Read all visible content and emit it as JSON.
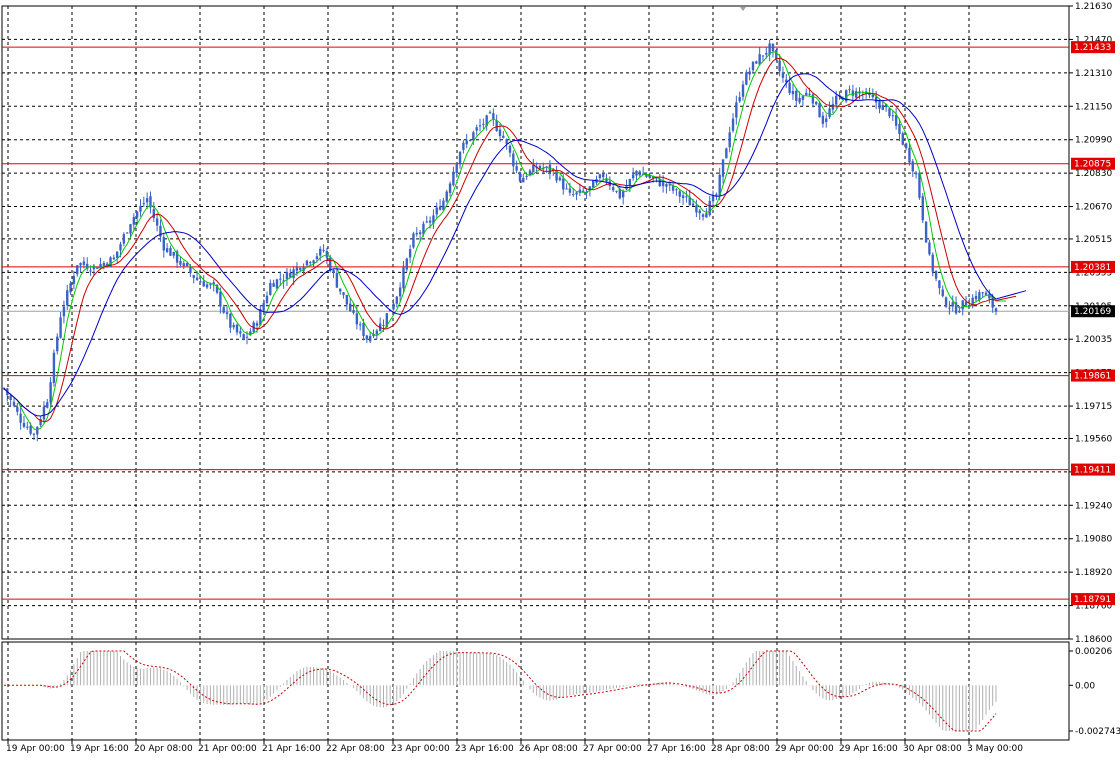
{
  "chart_data": [
    {
      "type": "candlestick",
      "panel": "price",
      "ylim": [
        1.186,
        1.2163
      ],
      "y_ticks": [
        "1.21630",
        "1.21470",
        "1.21310",
        "1.21150",
        "1.20990",
        "1.20830",
        "1.20670",
        "1.20515",
        "1.20355",
        "1.20195",
        "1.20035",
        "1.19875",
        "1.19715",
        "1.19560",
        "1.19400",
        "1.19240",
        "1.19080",
        "1.18920",
        "1.18760",
        "1.18600"
      ],
      "x_ticks": [
        "19 Apr 00:00",
        "19 Apr 16:00",
        "20 Apr 08:00",
        "21 Apr 00:00",
        "21 Apr 16:00",
        "22 Apr 08:00",
        "23 Apr 00:00",
        "23 Apr 16:00",
        "26 Apr 08:00",
        "27 Apr 00:00",
        "27 Apr 16:00",
        "28 Apr 08:00",
        "29 Apr 00:00",
        "29 Apr 16:00",
        "30 Apr 08:00",
        "3 May 00:00"
      ],
      "grid": true,
      "horizontal_levels": [
        "1.21433",
        "1.20875",
        "1.20381",
        "1.19861",
        "1.19411",
        "1.18791"
      ],
      "current_price": "1.20169",
      "close_anchors": [
        [
          0,
          1.198
        ],
        [
          5,
          1.1965
        ],
        [
          9,
          1.1958
        ],
        [
          13,
          1.1975
        ],
        [
          17,
          1.2015
        ],
        [
          22,
          1.204
        ],
        [
          27,
          1.2038
        ],
        [
          33,
          1.2042
        ],
        [
          38,
          1.206
        ],
        [
          43,
          1.2071
        ],
        [
          48,
          1.2048
        ],
        [
          53,
          1.204
        ],
        [
          58,
          1.2032
        ],
        [
          63,
          1.2028
        ],
        [
          68,
          1.201
        ],
        [
          72,
          1.2003
        ],
        [
          76,
          1.2012
        ],
        [
          80,
          1.203
        ],
        [
          85,
          1.2034
        ],
        [
          90,
          1.204
        ],
        [
          96,
          1.2046
        ],
        [
          100,
          1.203
        ],
        [
          105,
          1.2014
        ],
        [
          109,
          1.2004
        ],
        [
          114,
          1.2012
        ],
        [
          118,
          1.2025
        ],
        [
          123,
          1.2052
        ],
        [
          128,
          1.206
        ],
        [
          132,
          1.207
        ],
        [
          137,
          1.2094
        ],
        [
          142,
          1.2104
        ],
        [
          146,
          1.211
        ],
        [
          150,
          1.21
        ],
        [
          155,
          1.208
        ],
        [
          160,
          1.2086
        ],
        [
          165,
          1.2084
        ],
        [
          170,
          1.2072
        ],
        [
          175,
          1.2074
        ],
        [
          180,
          1.2082
        ],
        [
          185,
          1.2072
        ],
        [
          190,
          1.2084
        ],
        [
          195,
          1.208
        ],
        [
          200,
          1.2076
        ],
        [
          205,
          1.207
        ],
        [
          210,
          1.2064
        ],
        [
          214,
          1.2072
        ],
        [
          218,
          1.2104
        ],
        [
          222,
          1.2127
        ],
        [
          226,
          1.2137
        ],
        [
          230,
          1.2143
        ],
        [
          234,
          1.2128
        ],
        [
          238,
          1.2118
        ],
        [
          242,
          1.2122
        ],
        [
          246,
          1.2108
        ],
        [
          250,
          1.2118
        ],
        [
          254,
          1.2122
        ],
        [
          258,
          1.2121
        ],
        [
          262,
          1.2117
        ],
        [
          266,
          1.2112
        ],
        [
          270,
          1.2098
        ],
        [
          274,
          1.2082
        ],
        [
          278,
          1.2042
        ],
        [
          282,
          1.2022
        ],
        [
          286,
          1.2018
        ],
        [
          290,
          1.2022
        ],
        [
          294,
          1.2026
        ],
        [
          298,
          1.2017
        ]
      ],
      "series": [
        {
          "name": "",
          "kind": "sma",
          "period": 5,
          "color": "#00cc00"
        },
        {
          "name": "",
          "kind": "sma",
          "period": 10,
          "color": "#cc0000"
        },
        {
          "name": "",
          "kind": "sma",
          "period": 20,
          "color": "#0000cc"
        }
      ],
      "candle_color": "#3a62c7"
    },
    {
      "type": "bar",
      "panel": "oscillator",
      "ylim": [
        -0.002743,
        0.00206
      ],
      "y_ticks": [
        "0.00206",
        "0.00",
        "-0.002743"
      ],
      "histogram_color": "#b0b0b0",
      "signal_color": "#cc0000"
    }
  ],
  "colors": {
    "grid": "#000000",
    "level": "#e00000",
    "level_tag": "#e00000",
    "price_tag": "#000000",
    "background": "#ffffff"
  }
}
